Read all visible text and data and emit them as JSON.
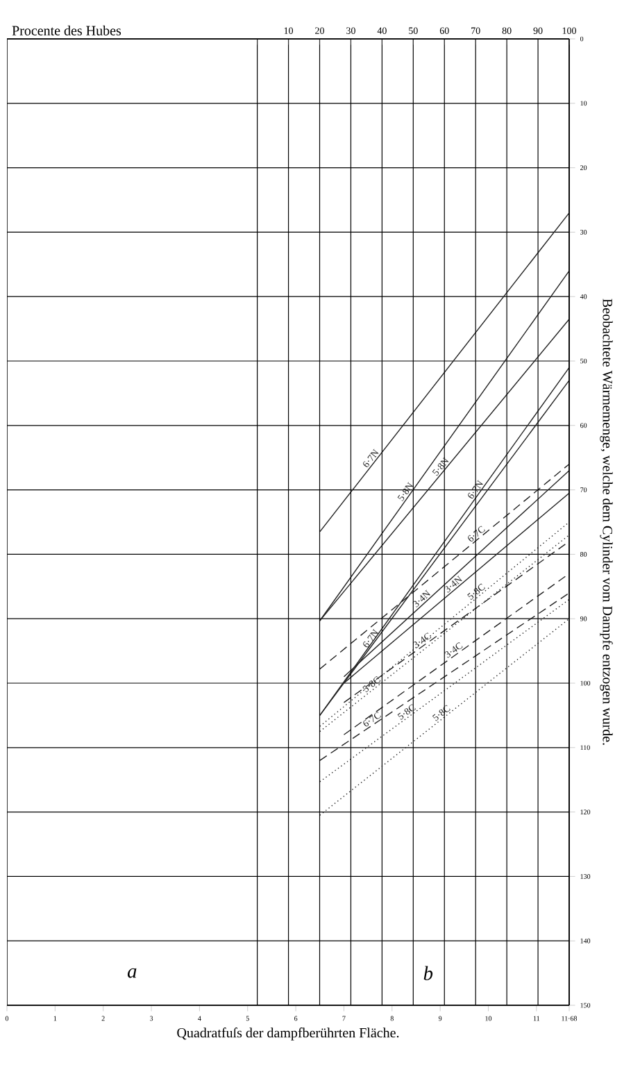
{
  "chart_data": {
    "type": "line",
    "xlabel": "Quadratfuſs der dampfberührten Fläche.",
    "ylabel": "Beobachtete Wärmemenge, welche dem Cylinder vom Dampfe entzogen wurde.",
    "x2label": "Procente des Hubes",
    "xlim": [
      0,
      11.68
    ],
    "xticks": [
      0,
      1,
      2,
      3,
      4,
      5,
      6,
      7,
      8,
      9,
      10,
      11,
      {
        "value": 11.68,
        "label": "11·68"
      }
    ],
    "x2lim": [
      -80.25,
      100
    ],
    "x2ticks": [
      {
        "value": 0,
        "label": null
      },
      10,
      20,
      30,
      40,
      50,
      60,
      70,
      80,
      90,
      100
    ],
    "ylim": [
      150,
      0
    ],
    "yticks": [
      0,
      10,
      20,
      30,
      40,
      50,
      60,
      70,
      80,
      90,
      100,
      110,
      120,
      130,
      140,
      150
    ],
    "grid": true,
    "annotations": [
      {
        "text": "a",
        "x": 2.6,
        "y": 145
      },
      {
        "text": "b",
        "x": 8.75,
        "y": 145
      }
    ],
    "series": [
      {
        "name": "6·7N",
        "color": "#222222",
        "line_style": "solid",
        "x": [
          6.5,
          11.68
        ],
        "values": [
          76.5,
          27
        ]
      },
      {
        "name": "5·8N",
        "color": "#222222",
        "line_style": "solid",
        "x": [
          6.5,
          11.68
        ],
        "values": [
          90.3,
          36
        ]
      },
      {
        "name": "5·8N",
        "color": "#222222",
        "line_style": "solid",
        "x": [
          6.5,
          11.68
        ],
        "values": [
          90.3,
          43.5
        ]
      },
      {
        "name": "6·7N",
        "color": "#222222",
        "line_style": "solid",
        "x": [
          6.5,
          11.68
        ],
        "values": [
          105,
          51
        ]
      },
      {
        "name": "6·7N",
        "color": "#222222",
        "line_style": "solid",
        "x": [
          6.5,
          11.68
        ],
        "values": [
          105,
          53
        ]
      },
      {
        "name": "3·4N",
        "color": "#222222",
        "line_style": "solid",
        "x": [
          7.0,
          11.68
        ],
        "values": [
          99,
          67
        ]
      },
      {
        "name": "3·4N",
        "color": "#222222",
        "line_style": "solid",
        "x": [
          7.0,
          11.68
        ],
        "values": [
          100,
          70.5
        ]
      },
      {
        "name": "6·7C",
        "color": "#222222",
        "line_style": "dashed",
        "x": [
          6.5,
          11.68
        ],
        "values": [
          97.8,
          66
        ]
      },
      {
        "name": "6·7C",
        "color": "#222222",
        "line_style": "dashed",
        "x": [
          6.5,
          11.68
        ],
        "values": [
          112,
          86
        ]
      },
      {
        "name": "3·4C",
        "color": "#222222",
        "line_style": "dashed",
        "x": [
          7.0,
          11.68
        ],
        "values": [
          103,
          78
        ]
      },
      {
        "name": "3·4C",
        "color": "#222222",
        "line_style": "dashed",
        "x": [
          7.0,
          11.68
        ],
        "values": [
          108,
          83
        ]
      },
      {
        "name": "5·8C",
        "color": "#222222",
        "line_style": "dotted",
        "x": [
          6.5,
          11.68
        ],
        "values": [
          106.7,
          75
        ]
      },
      {
        "name": "5·8C",
        "color": "#222222",
        "line_style": "dotted",
        "x": [
          6.5,
          11.68
        ],
        "values": [
          107.5,
          77
        ]
      },
      {
        "name": "5·8C",
        "color": "#222222",
        "line_style": "dotted",
        "x": [
          6.5,
          11.68
        ],
        "values": [
          115.3,
          87
        ]
      },
      {
        "name": "5·8C",
        "color": "#222222",
        "line_style": "dotted",
        "x": [
          6.5,
          11.68
        ],
        "values": [
          120.5,
          90
        ]
      }
    ]
  }
}
